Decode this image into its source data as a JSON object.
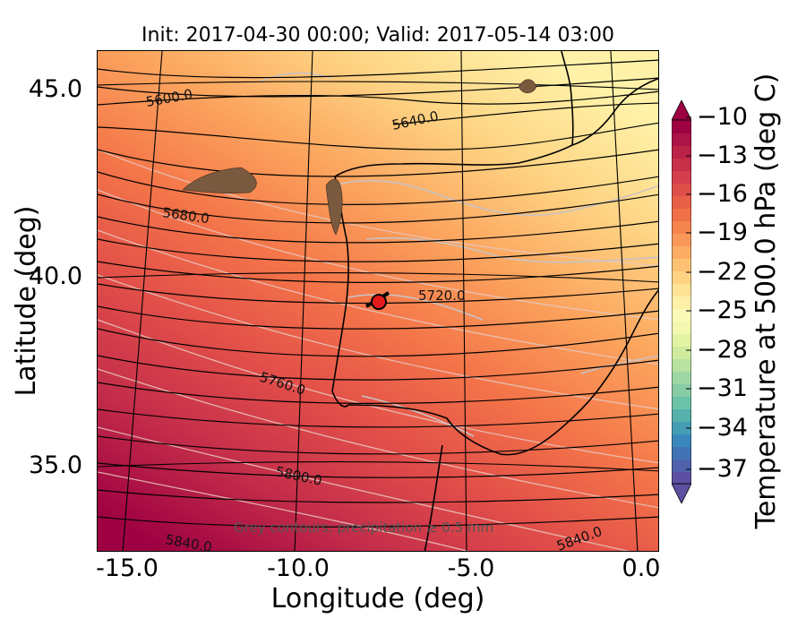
{
  "title": "Init: 2017-04-30 00:00; Valid: 2017-05-14 03:00",
  "xlabel": "Longitude (deg)",
  "ylabel": "Latitude (deg)",
  "x_ticks": [
    "-15.0",
    "-10.0",
    "-5.0",
    "0.0"
  ],
  "y_ticks": [
    "45.0",
    "40.0",
    "35.0"
  ],
  "colorbar": {
    "label": "Temperature at 500.0 hPa (deg C)",
    "ticks": [
      "−10",
      "−13",
      "−16",
      "−19",
      "−22",
      "−25",
      "−28",
      "−31",
      "−34",
      "−37"
    ],
    "extend": "both",
    "colormap": "Spectral"
  },
  "contour_labels": [
    "5600.0",
    "5640.0",
    "5680.0",
    "5720.0",
    "5760.0",
    "5800.0",
    "5840.0",
    "5840.0"
  ],
  "note": "Grey contours: precipitation ≥ 0.5 mm",
  "marker": {
    "color": "#e41a1c",
    "location": "central Iberia"
  },
  "map_extent": {
    "lon": [
      -16,
      0.2
    ],
    "lat": [
      32.7,
      46
    ]
  }
}
